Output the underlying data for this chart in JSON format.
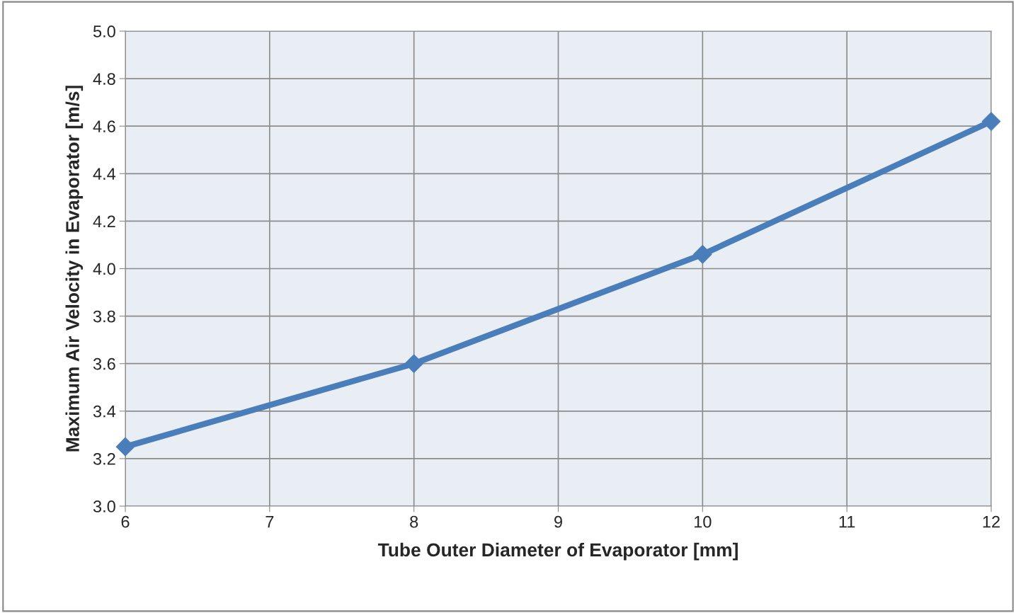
{
  "chart_data": {
    "type": "line",
    "xlabel": "Tube Outer Diameter of Evaporator [mm]",
    "ylabel": "Maximum Air Velocity in Evaporator [m/s]",
    "x": [
      6,
      8,
      10,
      12
    ],
    "series": [
      {
        "color": "#4a7ebb",
        "values": [
          3.25,
          3.6,
          4.06,
          4.62
        ]
      }
    ],
    "xlim": [
      6,
      12
    ],
    "xticks": [
      6,
      7,
      8,
      9,
      10,
      11,
      12
    ],
    "ylim": [
      3.0,
      5.0
    ],
    "yticks": [
      {
        "value": 3.0,
        "label": "3.0"
      },
      {
        "value": 3.2,
        "label": "3.2"
      },
      {
        "value": 3.4,
        "label": "3.4"
      },
      {
        "value": 3.6,
        "label": "3.6"
      },
      {
        "value": 3.8,
        "label": "3.8"
      },
      {
        "value": 4.0,
        "label": "4.0"
      },
      {
        "value": 4.2,
        "label": "4.2"
      },
      {
        "value": 4.4,
        "label": "4.4"
      },
      {
        "value": 4.6,
        "label": "4.6"
      },
      {
        "value": 4.8,
        "label": "4.8"
      },
      {
        "value": 5.0,
        "label": "5.0"
      }
    ],
    "grid": true,
    "marker": "diamond",
    "line_style": "solid"
  }
}
